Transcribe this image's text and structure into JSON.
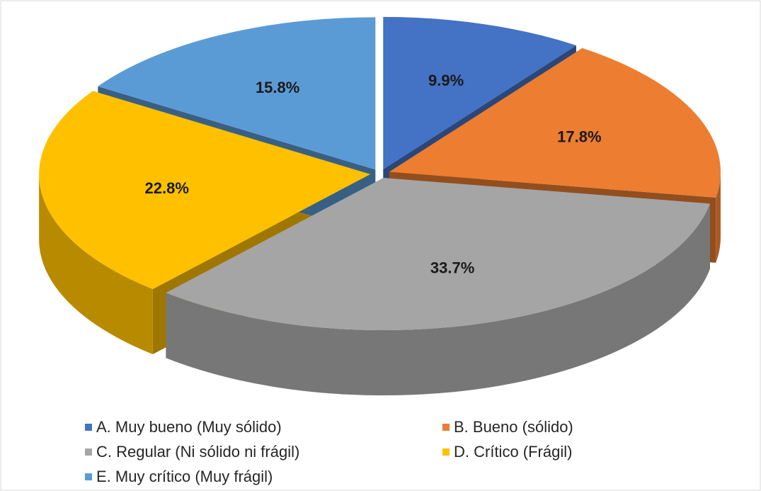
{
  "chart_data": {
    "type": "pie",
    "three_d": true,
    "exploded": true,
    "categories": [
      "A. Muy bueno (Muy sólido)",
      "B. Bueno (sólido)",
      "C. Regular (Ni sólido ni frágil)",
      "D. Crítico (Frágil)",
      "E. Muy crítico (Muy frágil)"
    ],
    "values": [
      9.9,
      17.8,
      33.7,
      22.8,
      15.8
    ],
    "value_labels": [
      "9.9%",
      "17.8%",
      "33.7%",
      "22.8%",
      "15.8%"
    ],
    "colors": [
      "#4472c4",
      "#ed7d31",
      "#a5a5a5",
      "#ffc000",
      "#5b9bd5"
    ],
    "legend": "bottom"
  }
}
